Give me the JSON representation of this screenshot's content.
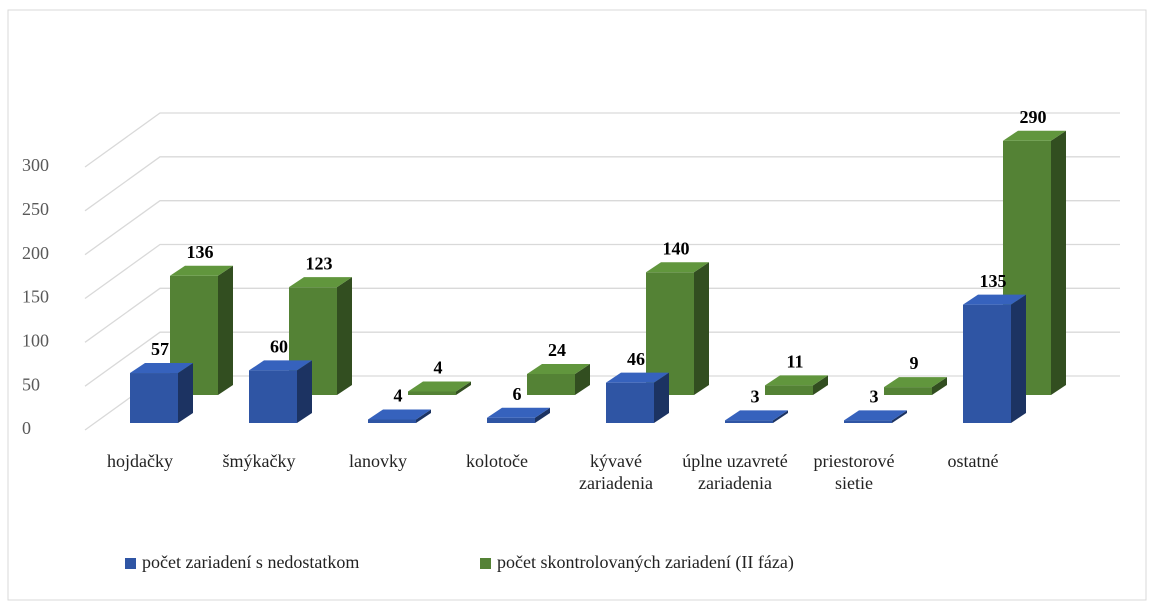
{
  "chart_data": {
    "type": "bar3d",
    "categories": [
      "hojdačky",
      "šmýkačky",
      "lanovky",
      "kolotoče",
      "kývavé zariadenia",
      "úplne uzavreté zariadenia",
      "priestorové sietie",
      "ostatné"
    ],
    "series": [
      {
        "name": "počet zariadení s nedostatkom",
        "color": "#2f55a4",
        "values": [
          57,
          60,
          4,
          6,
          46,
          3,
          3,
          135
        ]
      },
      {
        "name": "počet skontrolovaných zariadení (II fáza)",
        "color": "#548235",
        "values": [
          136,
          123,
          4,
          24,
          140,
          11,
          9,
          290
        ]
      }
    ],
    "ylim": [
      0,
      300
    ],
    "yticks": [
      0,
      50,
      100,
      150,
      200,
      250,
      300
    ],
    "grid": true,
    "legend": "bottom"
  }
}
